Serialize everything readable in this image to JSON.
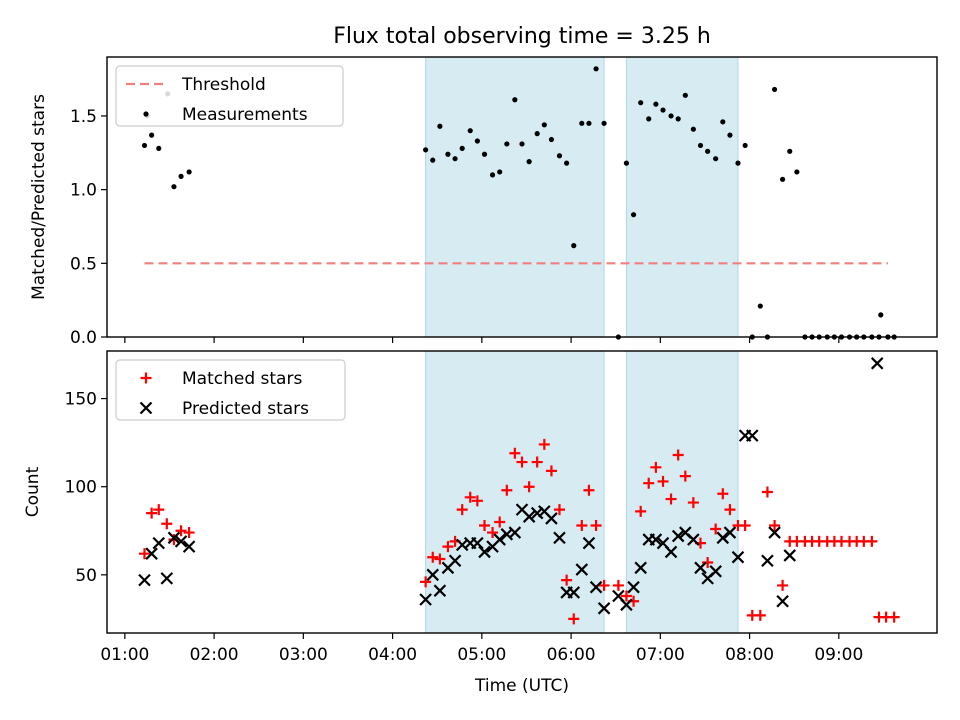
{
  "figure": {
    "title": "Flux total observing time = 3.25 h",
    "x_axis_label": "Time (UTC)",
    "x_tick_labels": [
      "01:00",
      "02:00",
      "03:00",
      "04:00",
      "05:00",
      "06:00",
      "07:00",
      "08:00",
      "09:00"
    ]
  },
  "colors": {
    "threshold": "#f08080",
    "measurements": "#000000",
    "matched": "#ff0000",
    "predicted": "#000000",
    "shade": "#add8e6"
  },
  "chart_data": [
    {
      "type": "scatter",
      "panel": "top",
      "title": "Flux total observing time = 3.25 h",
      "ylabel": "Matched/Predicted stars",
      "xlabel": "",
      "x_unit": "hours UTC",
      "xlim": [
        0.8,
        10.1
      ],
      "ylim": [
        0.0,
        1.9
      ],
      "y_ticks": [
        0.0,
        0.5,
        1.0,
        1.5
      ],
      "y_tick_labels": [
        "0.0",
        "0.5",
        "1.0",
        "1.5"
      ],
      "legend": {
        "placement": "upper-left",
        "entries": [
          "Threshold",
          "Measurements"
        ]
      },
      "shaded_intervals": [
        [
          4.37,
          6.37
        ],
        [
          6.62,
          7.87
        ]
      ],
      "threshold": {
        "name": "Threshold",
        "style": "dashed",
        "y": 0.5,
        "x_start": 1.22,
        "x_end": 9.55
      },
      "series": [
        {
          "name": "Measurements",
          "marker": "dot",
          "points": [
            [
              1.22,
              1.3
            ],
            [
              1.25,
              1.5
            ],
            [
              1.3,
              1.37
            ],
            [
              1.38,
              1.28
            ],
            [
              1.48,
              1.65
            ],
            [
              1.55,
              1.02
            ],
            [
              1.63,
              1.09
            ],
            [
              1.72,
              1.12
            ],
            [
              4.37,
              1.27
            ],
            [
              4.45,
              1.2
            ],
            [
              4.53,
              1.43
            ],
            [
              4.62,
              1.24
            ],
            [
              4.7,
              1.21
            ],
            [
              4.78,
              1.28
            ],
            [
              4.87,
              1.4
            ],
            [
              4.95,
              1.33
            ],
            [
              5.03,
              1.24
            ],
            [
              5.12,
              1.1
            ],
            [
              5.2,
              1.12
            ],
            [
              5.28,
              1.31
            ],
            [
              5.37,
              1.61
            ],
            [
              5.45,
              1.31
            ],
            [
              5.53,
              1.19
            ],
            [
              5.62,
              1.38
            ],
            [
              5.7,
              1.44
            ],
            [
              5.78,
              1.34
            ],
            [
              5.87,
              1.23
            ],
            [
              5.95,
              1.18
            ],
            [
              6.03,
              0.62
            ],
            [
              6.12,
              1.45
            ],
            [
              6.2,
              1.45
            ],
            [
              6.28,
              1.82
            ],
            [
              6.37,
              1.45
            ],
            [
              6.53,
              0.0
            ],
            [
              6.62,
              1.18
            ],
            [
              6.7,
              0.83
            ],
            [
              6.78,
              1.59
            ],
            [
              6.87,
              1.48
            ],
            [
              6.95,
              1.58
            ],
            [
              7.03,
              1.54
            ],
            [
              7.12,
              1.5
            ],
            [
              7.2,
              1.48
            ],
            [
              7.28,
              1.64
            ],
            [
              7.37,
              1.41
            ],
            [
              7.45,
              1.3
            ],
            [
              7.53,
              1.26
            ],
            [
              7.62,
              1.21
            ],
            [
              7.7,
              1.46
            ],
            [
              7.78,
              1.37
            ],
            [
              7.87,
              1.18
            ],
            [
              7.95,
              1.3
            ],
            [
              8.03,
              0.0
            ],
            [
              8.12,
              0.21
            ],
            [
              8.2,
              0.0
            ],
            [
              8.28,
              1.68
            ],
            [
              8.37,
              1.07
            ],
            [
              8.45,
              1.26
            ],
            [
              8.53,
              1.12
            ],
            [
              8.62,
              0.0
            ],
            [
              8.7,
              0.0
            ],
            [
              8.78,
              0.0
            ],
            [
              8.87,
              0.0
            ],
            [
              8.95,
              0.0
            ],
            [
              9.03,
              0.0
            ],
            [
              9.12,
              0.0
            ],
            [
              9.2,
              0.0
            ],
            [
              9.28,
              0.0
            ],
            [
              9.37,
              0.0
            ],
            [
              9.45,
              0.0
            ],
            [
              9.47,
              0.15
            ],
            [
              9.55,
              0.0
            ],
            [
              9.62,
              0.0
            ]
          ]
        }
      ]
    },
    {
      "type": "scatter",
      "panel": "bottom",
      "ylabel": "Count",
      "xlabel": "Time (UTC)",
      "x_unit": "hours UTC",
      "xlim": [
        0.8,
        10.1
      ],
      "ylim": [
        17,
        177
      ],
      "y_ticks": [
        50,
        100,
        150
      ],
      "y_tick_labels": [
        "50",
        "100",
        "150"
      ],
      "x_ticks": [
        1,
        2,
        3,
        4,
        5,
        6,
        7,
        8,
        9
      ],
      "x_tick_labels": [
        "01:00",
        "02:00",
        "03:00",
        "04:00",
        "05:00",
        "06:00",
        "07:00",
        "08:00",
        "09:00"
      ],
      "legend": {
        "placement": "upper-left",
        "entries": [
          "Matched stars",
          "Predicted stars"
        ]
      },
      "shaded_intervals": [
        [
          4.37,
          6.37
        ],
        [
          6.62,
          7.87
        ]
      ],
      "series": [
        {
          "name": "Matched stars",
          "marker": "plus",
          "points": [
            [
              1.22,
              62
            ],
            [
              1.3,
              85
            ],
            [
              1.38,
              87
            ],
            [
              1.47,
              79
            ],
            [
              1.55,
              70
            ],
            [
              1.63,
              75
            ],
            [
              1.72,
              74
            ],
            [
              4.37,
              46
            ],
            [
              4.45,
              60
            ],
            [
              4.53,
              59
            ],
            [
              4.62,
              66
            ],
            [
              4.7,
              69
            ],
            [
              4.78,
              87
            ],
            [
              4.87,
              94
            ],
            [
              4.95,
              92
            ],
            [
              5.03,
              78
            ],
            [
              5.12,
              74
            ],
            [
              5.2,
              80
            ],
            [
              5.28,
              98
            ],
            [
              5.37,
              119
            ],
            [
              5.45,
              114
            ],
            [
              5.53,
              100
            ],
            [
              5.62,
              114
            ],
            [
              5.7,
              124
            ],
            [
              5.78,
              109
            ],
            [
              5.87,
              87
            ],
            [
              5.95,
              47
            ],
            [
              6.03,
              25
            ],
            [
              6.12,
              78
            ],
            [
              6.2,
              98
            ],
            [
              6.28,
              78
            ],
            [
              6.37,
              44
            ],
            [
              6.53,
              44
            ],
            [
              6.62,
              38
            ],
            [
              6.7,
              35
            ],
            [
              6.78,
              86
            ],
            [
              6.87,
              102
            ],
            [
              6.95,
              111
            ],
            [
              7.03,
              103
            ],
            [
              7.12,
              93
            ],
            [
              7.2,
              118
            ],
            [
              7.28,
              106
            ],
            [
              7.37,
              91
            ],
            [
              7.45,
              68
            ],
            [
              7.53,
              57
            ],
            [
              7.62,
              76
            ],
            [
              7.7,
              96
            ],
            [
              7.78,
              87
            ],
            [
              7.87,
              78
            ],
            [
              7.95,
              78
            ],
            [
              8.03,
              27
            ],
            [
              8.12,
              27
            ],
            [
              8.2,
              97
            ],
            [
              8.28,
              78
            ],
            [
              8.37,
              44
            ],
            [
              8.45,
              69
            ],
            [
              8.53,
              69
            ],
            [
              8.62,
              69
            ],
            [
              8.7,
              69
            ],
            [
              8.78,
              69
            ],
            [
              8.87,
              69
            ],
            [
              8.95,
              69
            ],
            [
              9.03,
              69
            ],
            [
              9.12,
              69
            ],
            [
              9.2,
              69
            ],
            [
              9.28,
              69
            ],
            [
              9.37,
              69
            ],
            [
              9.45,
              26
            ],
            [
              9.53,
              26
            ],
            [
              9.62,
              26
            ]
          ]
        },
        {
          "name": "Predicted stars",
          "marker": "x",
          "points": [
            [
              1.22,
              47
            ],
            [
              1.3,
              62
            ],
            [
              1.38,
              68
            ],
            [
              1.47,
              48
            ],
            [
              1.55,
              71
            ],
            [
              1.63,
              69
            ],
            [
              1.72,
              66
            ],
            [
              4.37,
              36
            ],
            [
              4.45,
              50
            ],
            [
              4.53,
              41
            ],
            [
              4.62,
              54
            ],
            [
              4.7,
              58
            ],
            [
              4.78,
              67
            ],
            [
              4.87,
              68
            ],
            [
              4.95,
              68
            ],
            [
              5.03,
              63
            ],
            [
              5.12,
              66
            ],
            [
              5.2,
              70
            ],
            [
              5.28,
              73
            ],
            [
              5.37,
              74
            ],
            [
              5.45,
              87
            ],
            [
              5.53,
              83
            ],
            [
              5.62,
              85
            ],
            [
              5.7,
              86
            ],
            [
              5.78,
              82
            ],
            [
              5.87,
              71
            ],
            [
              5.95,
              40
            ],
            [
              6.03,
              40
            ],
            [
              6.12,
              53
            ],
            [
              6.2,
              68
            ],
            [
              6.28,
              43
            ],
            [
              6.37,
              31
            ],
            [
              6.53,
              38
            ],
            [
              6.62,
              33
            ],
            [
              6.7,
              43
            ],
            [
              6.78,
              54
            ],
            [
              6.87,
              70
            ],
            [
              6.95,
              70
            ],
            [
              7.03,
              68
            ],
            [
              7.12,
              63
            ],
            [
              7.2,
              72
            ],
            [
              7.28,
              74
            ],
            [
              7.37,
              70
            ],
            [
              7.45,
              54
            ],
            [
              7.53,
              48
            ],
            [
              7.62,
              52
            ],
            [
              7.7,
              71
            ],
            [
              7.78,
              74
            ],
            [
              7.87,
              60
            ],
            [
              7.95,
              129
            ],
            [
              8.03,
              129
            ],
            [
              8.2,
              58
            ],
            [
              8.28,
              74
            ],
            [
              8.37,
              35
            ],
            [
              8.45,
              61
            ],
            [
              9.43,
              170
            ]
          ]
        }
      ]
    }
  ]
}
